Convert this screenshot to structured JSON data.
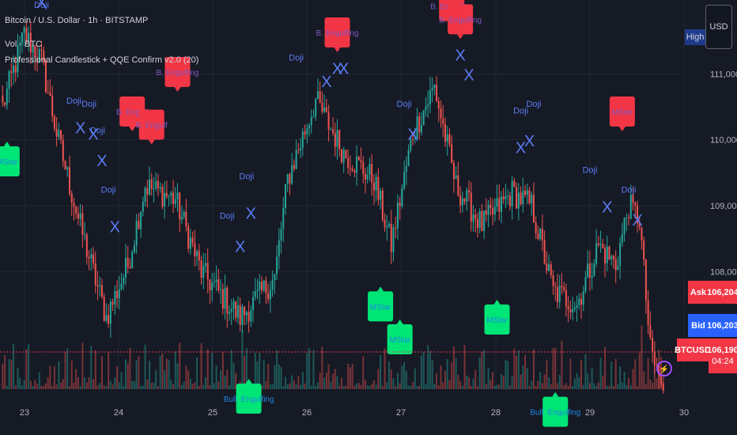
{
  "header": {
    "title": "Bitcoin / U.S. Dollar · 1h · BITSTAMP",
    "vol_label": "Vol · BTC",
    "indicator_label": "Professional Candlestick + QQE Confirm v2.0 (20)"
  },
  "price_scale": {
    "currency_button": "USD",
    "high_label": "High",
    "ticks": [
      {
        "label": "111,000",
        "value": 111000
      },
      {
        "label": "110,000",
        "value": 110000
      },
      {
        "label": "109,000",
        "value": 109000
      },
      {
        "label": "108,000",
        "value": 108000
      }
    ],
    "ask": {
      "label": "Ask",
      "value": "106,204"
    },
    "bid": {
      "label": "Bid",
      "value": "106,203"
    },
    "last": {
      "symbol": "BTCUSD",
      "value": "106,190",
      "countdown": "04:24"
    }
  },
  "time_axis": {
    "ticks": [
      "23",
      "24",
      "25",
      "26",
      "27",
      "28",
      "29",
      "30"
    ]
  },
  "chart_data": {
    "type": "candlestick",
    "symbol": "BTCUSD",
    "interval": "1h",
    "y_range": [
      106000,
      112000
    ],
    "grid": true,
    "anchors": [
      [
        0,
        110500
      ],
      [
        10,
        111600
      ],
      [
        18,
        111200
      ],
      [
        25,
        110100
      ],
      [
        35,
        108800
      ],
      [
        48,
        107300
      ],
      [
        58,
        108100
      ],
      [
        66,
        109300
      ],
      [
        80,
        109100
      ],
      [
        92,
        108000
      ],
      [
        110,
        107300
      ],
      [
        126,
        107900
      ],
      [
        132,
        109400
      ],
      [
        145,
        110600
      ],
      [
        158,
        109800
      ],
      [
        172,
        109400
      ],
      [
        180,
        108400
      ],
      [
        190,
        110100
      ],
      [
        200,
        110800
      ],
      [
        210,
        109300
      ],
      [
        222,
        108700
      ],
      [
        236,
        109200
      ],
      [
        245,
        109000
      ],
      [
        255,
        107700
      ],
      [
        266,
        107500
      ],
      [
        276,
        108400
      ],
      [
        284,
        108100
      ],
      [
        290,
        109000
      ],
      [
        295,
        108800
      ],
      [
        300,
        106800
      ],
      [
        306,
        106190
      ]
    ],
    "labels": [
      {
        "text": "Doji",
        "bar": 33,
        "price": 110550
      },
      {
        "text": "Doji",
        "bar": 40,
        "price": 110500
      },
      {
        "text": "Doji",
        "bar": 44,
        "price": 110100
      },
      {
        "text": "Doji",
        "bar": 49,
        "price": 109200
      },
      {
        "text": "Doji",
        "bar": 104,
        "price": 108800
      },
      {
        "text": "Doji",
        "bar": 113,
        "price": 109400
      },
      {
        "text": "Doji",
        "bar": 136,
        "price": 111200
      },
      {
        "text": "Doji",
        "bar": 186,
        "price": 110500
      },
      {
        "text": "Doji",
        "bar": 240,
        "price": 110400
      },
      {
        "text": "Doji",
        "bar": 246,
        "price": 110500
      },
      {
        "text": "Doji",
        "bar": 272,
        "price": 109500
      },
      {
        "text": "Doji",
        "bar": 290,
        "price": 109200
      },
      {
        "text": "Doji",
        "bar": 18,
        "price": 112000
      },
      {
        "text": "MStar",
        "bar": 2,
        "price": 109900,
        "kind": "bull"
      },
      {
        "text": "MStar",
        "bar": 175,
        "price": 107700,
        "kind": "bull"
      },
      {
        "text": "MStar",
        "bar": 184,
        "price": 107200,
        "kind": "bull"
      },
      {
        "text": "MStar",
        "bar": 229,
        "price": 107500,
        "kind": "bull"
      },
      {
        "text": "MStar",
        "bar": 287,
        "price": 110200,
        "kind": "bear"
      },
      {
        "text": "B. Engulf",
        "bar": 60,
        "price": 110200,
        "kind": "bear"
      },
      {
        "text": "B. Engulf",
        "bar": 69,
        "price": 110000,
        "kind": "bear"
      },
      {
        "text": "B. Engulfing",
        "bar": 81,
        "price": 110800,
        "kind": "bear"
      },
      {
        "text": "B. Engulfing",
        "bar": 155,
        "price": 111400,
        "kind": "bear"
      },
      {
        "text": "B. Engulfing",
        "bar": 208,
        "price": 111800,
        "kind": "bear"
      },
      {
        "text": "B. Engulfing",
        "bar": 212,
        "price": 111600,
        "kind": "bear"
      },
      {
        "text": "Bull. Engulfing",
        "bar": 114,
        "price": 106300,
        "kind": "bull"
      },
      {
        "text": "Bull. Engulfing",
        "bar": 256,
        "price": 106100,
        "kind": "bull"
      }
    ],
    "x_markers": [
      {
        "bar": 36,
        "price": 110100
      },
      {
        "bar": 42,
        "price": 110000
      },
      {
        "bar": 46,
        "price": 109600
      },
      {
        "bar": 52,
        "price": 108600
      },
      {
        "bar": 110,
        "price": 108300
      },
      {
        "bar": 115,
        "price": 108800
      },
      {
        "bar": 150,
        "price": 110800
      },
      {
        "bar": 155,
        "price": 111000
      },
      {
        "bar": 158,
        "price": 111000
      },
      {
        "bar": 190,
        "price": 110000
      },
      {
        "bar": 212,
        "price": 111200
      },
      {
        "bar": 216,
        "price": 110900
      },
      {
        "bar": 240,
        "price": 109800
      },
      {
        "bar": 244,
        "price": 109900
      },
      {
        "bar": 280,
        "price": 108900
      },
      {
        "bar": 294,
        "price": 108700
      },
      {
        "bar": 18,
        "price": 112000
      }
    ],
    "volume_max": 80,
    "colors": {
      "up": "#26a69a",
      "down": "#ef5350",
      "bear_label": "#f23645",
      "bull_label": "#00e676",
      "doji": "#5b7cf5"
    }
  },
  "colors": {
    "background": "#161a25",
    "grid": "#232733",
    "text": "#b2b5be"
  }
}
